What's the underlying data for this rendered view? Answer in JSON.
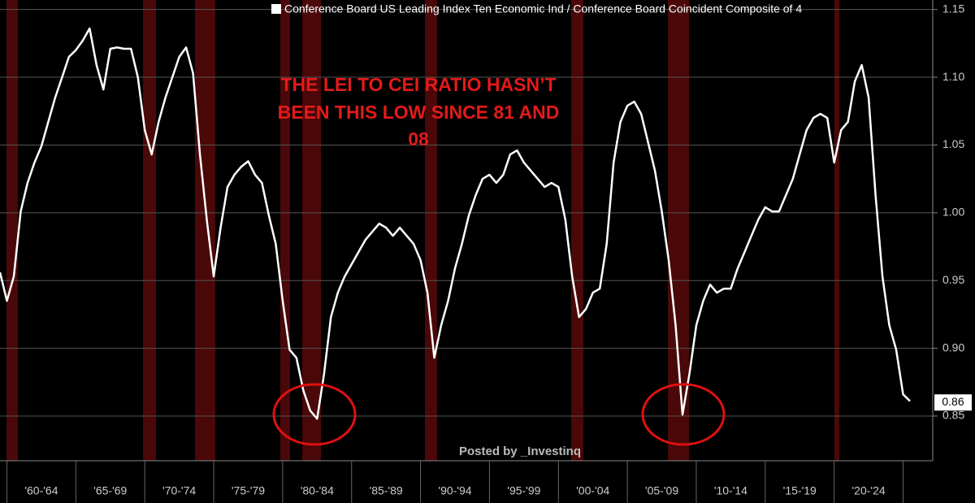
{
  "chart_data": {
    "type": "line",
    "legend_text": "Conference Board US Leading Index Ten Economic Ind / Conference Board Coincident Composite of 4",
    "annotation": [
      "THE LEI TO CEI RATIO HASN’T",
      "BEEN THIS LOW SINCE 81 AND",
      "08"
    ],
    "watermark": "Posted by _Investinq",
    "last_value": 0.86,
    "categories": [
      null,
      null,
      null,
      null,
      null,
      null,
      "'60-'64",
      null,
      null,
      null,
      null,
      null,
      null,
      null,
      null,
      null,
      "'65-'69",
      null,
      null,
      null,
      null,
      null,
      null,
      null,
      null,
      null,
      "'70-'74",
      null,
      null,
      null,
      null,
      null,
      null,
      null,
      null,
      null,
      "'75-'79",
      null,
      null,
      null,
      null,
      null,
      null,
      null,
      null,
      null,
      "'80-'84",
      null,
      null,
      null,
      null,
      null,
      null,
      null,
      null,
      null,
      "'85-'89",
      null,
      null,
      null,
      null,
      null,
      null,
      null,
      null,
      null,
      "'90-'94",
      null,
      null,
      null,
      null,
      null,
      null,
      null,
      null,
      null,
      "'95-'99",
      null,
      null,
      null,
      null,
      null,
      null,
      null,
      null,
      null,
      "'00-'04",
      null,
      null,
      null,
      null,
      null,
      null,
      null,
      null,
      null,
      "'05-'09",
      null,
      null,
      null,
      null,
      null,
      null,
      null,
      null,
      null,
      "'10-'14",
      null,
      null,
      null,
      null,
      null,
      null,
      null,
      null,
      null,
      "'15-'19",
      null,
      null,
      null,
      null,
      null,
      null,
      null,
      null,
      null,
      "'20-'24",
      null,
      null,
      null,
      null,
      null,
      null
    ],
    "series": [
      {
        "name": "Conference Board US Leading Index Ten Economic Ind / Conference Board Coincident Composite of 4",
        "color": "#ffffff",
        "values": [
          0.956,
          0.935,
          0.953,
          1.001,
          1.022,
          1.037,
          1.049,
          1.067,
          1.085,
          1.1,
          1.115,
          1.12,
          1.127,
          1.136,
          1.109,
          1.091,
          1.121,
          1.122,
          1.121,
          1.121,
          1.1,
          1.061,
          1.043,
          1.067,
          1.085,
          1.1,
          1.115,
          1.122,
          1.103,
          1.043,
          0.995,
          0.953,
          0.989,
          1.019,
          1.028,
          1.034,
          1.038,
          1.028,
          1.022,
          0.998,
          0.977,
          0.935,
          0.899,
          0.893,
          0.869,
          0.854,
          0.848,
          0.881,
          0.923,
          0.941,
          0.953,
          0.962,
          0.971,
          0.98,
          0.986,
          0.992,
          0.989,
          0.983,
          0.989,
          0.983,
          0.977,
          0.965,
          0.941,
          0.893,
          0.917,
          0.935,
          0.959,
          0.977,
          0.998,
          1.013,
          1.025,
          1.028,
          1.022,
          1.028,
          1.043,
          1.046,
          1.037,
          1.031,
          1.025,
          1.019,
          1.022,
          1.019,
          0.995,
          0.953,
          0.923,
          0.929,
          0.941,
          0.944,
          0.977,
          1.037,
          1.067,
          1.079,
          1.082,
          1.073,
          1.052,
          1.031,
          1.001,
          0.965,
          0.917,
          0.851,
          0.881,
          0.917,
          0.935,
          0.947,
          0.941,
          0.944,
          0.944,
          0.959,
          0.971,
          0.983,
          0.995,
          1.004,
          1.001,
          1.001,
          1.013,
          1.025,
          1.043,
          1.061,
          1.07,
          1.073,
          1.07,
          1.037,
          1.061,
          1.067,
          1.097,
          1.109,
          1.085,
          1.013,
          0.953,
          0.917,
          0.899,
          0.866,
          0.861
        ]
      }
    ],
    "ylim": [
      0.817,
      1.157
    ],
    "yticks": [
      0.85,
      {
        "value": 0.9,
        "label": "0.90"
      },
      0.95,
      {
        "value": 1.0,
        "label": "1.00"
      },
      1.05,
      {
        "value": 1.1,
        "label": "1.10"
      },
      1.15
    ],
    "grid": true
  }
}
